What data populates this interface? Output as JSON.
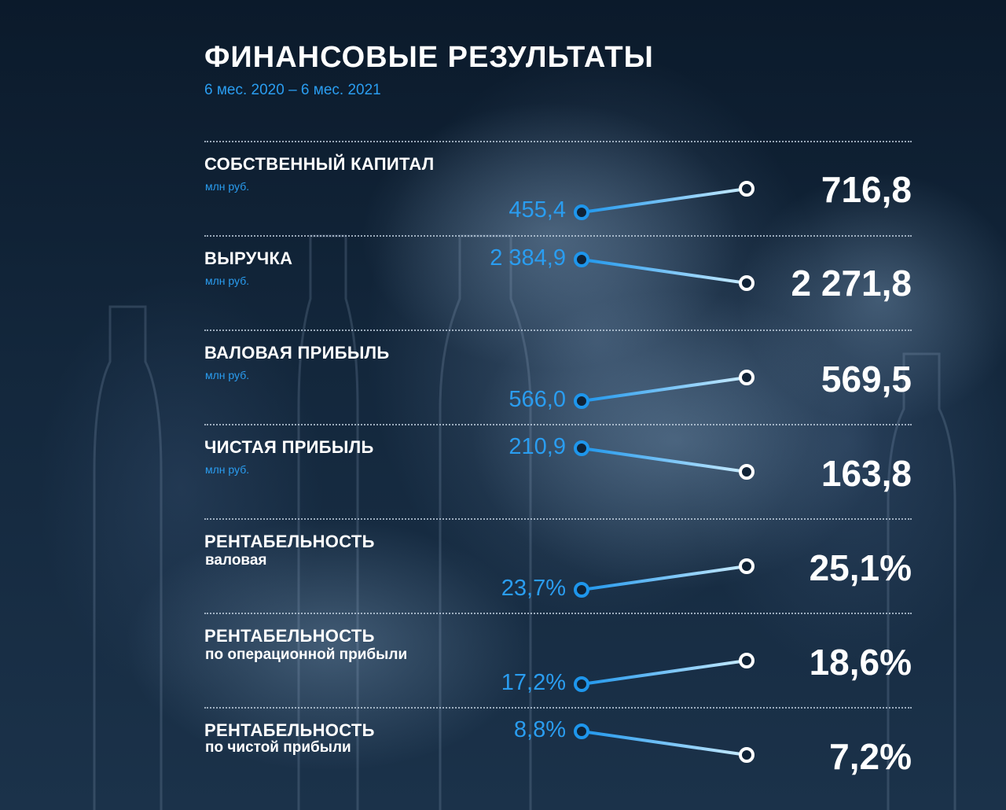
{
  "header": {
    "title": "ФИНАНСОВЫЕ РЕЗУЛЬТАТЫ",
    "subtitle": "6 мес. 2020 – 6 мес. 2021"
  },
  "colors": {
    "accent": "#2a9df0",
    "line_start": "#1e96ec",
    "line_end": "#c9ecff",
    "text": "#ffffff"
  },
  "chart_data": {
    "type": "slope",
    "title": "ФИНАНСОВЫЕ РЕЗУЛЬТАТЫ",
    "subtitle": "6 мес. 2020 – 6 мес. 2021",
    "periods": [
      "6 мес. 2020",
      "6 мес. 2021"
    ],
    "rows": [
      {
        "label": "СОБСТВЕННЫЙ КАПИТАЛ",
        "unit": "млн руб.",
        "v2020": 455.4,
        "v2021": 716.8,
        "v2020_text": "455,4",
        "v2021_text": "716,8"
      },
      {
        "label": "ВЫРУЧКА",
        "unit": "млн руб.",
        "v2020": 2384.9,
        "v2021": 2271.8,
        "v2020_text": "2 384,9",
        "v2021_text": "2 271,8"
      },
      {
        "label": "ВАЛОВАЯ ПРИБЫЛЬ",
        "unit": "млн руб.",
        "v2020": 566.0,
        "v2021": 569.5,
        "v2020_text": "566,0",
        "v2021_text": "569,5"
      },
      {
        "label": "ЧИСТАЯ ПРИБЫЛЬ",
        "unit": "млн руб.",
        "v2020": 210.9,
        "v2021": 163.8,
        "v2020_text": "210,9",
        "v2021_text": "163,8"
      },
      {
        "label": "РЕНТАБЕЛЬНОСТЬ",
        "unit": "валовая",
        "v2020": 23.7,
        "v2021": 25.1,
        "v2020_text": "23,7%",
        "v2021_text": "25,1%"
      },
      {
        "label": "РЕНТАБЕЛЬНОСТЬ",
        "unit": "по операционной прибыли",
        "v2020": 17.2,
        "v2021": 18.6,
        "v2020_text": "17,2%",
        "v2021_text": "18,6%"
      },
      {
        "label": "РЕНТАБЕЛЬНОСТЬ",
        "unit": "по чистой прибыли",
        "v2020": 8.8,
        "v2021": 7.2,
        "v2020_text": "8,8%",
        "v2021_text": "7,2%"
      }
    ]
  }
}
